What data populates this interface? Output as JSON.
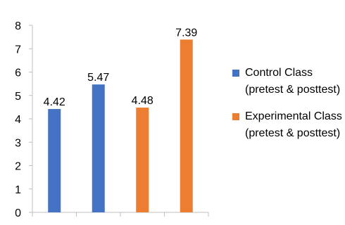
{
  "chart_data": {
    "type": "bar",
    "title": "",
    "xlabel": "",
    "ylabel": "",
    "ylim": [
      0,
      8
    ],
    "yticks": [
      0,
      1,
      2,
      3,
      4,
      5,
      6,
      7,
      8
    ],
    "grid": false,
    "legend_position": "right",
    "series": [
      {
        "name": "Control Class (pretest & posttest)",
        "color": "#4472C4",
        "values": [
          4.42,
          5.47,
          null,
          null
        ]
      },
      {
        "name": "Experimental Class (pretest & posttest)",
        "color": "#ED7D31",
        "values": [
          null,
          null,
          4.48,
          7.39
        ]
      }
    ],
    "data_labels": [
      "4.42",
      "5.47",
      "4.48",
      "7.39"
    ]
  }
}
